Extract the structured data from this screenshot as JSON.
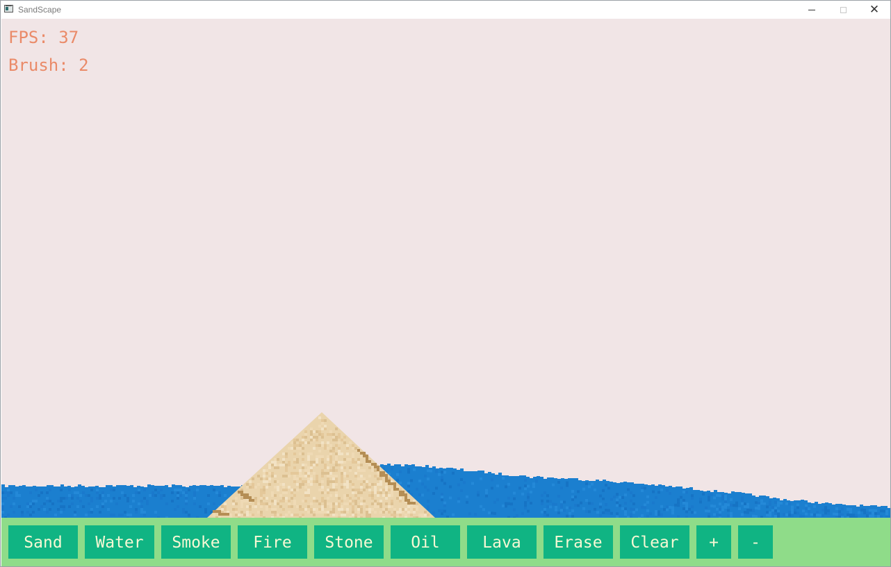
{
  "window": {
    "title": "SandScape"
  },
  "hud": {
    "fps_text": "FPS: 37",
    "brush_text": "Brush: 2"
  },
  "toolbar": {
    "buttons": [
      "Sand",
      "Water",
      "Smoke",
      "Fire",
      "Stone",
      "Oil",
      "Lava",
      "Erase",
      "Clear",
      "+",
      "-"
    ]
  },
  "colors": {
    "background": "#f1e5e6",
    "hud_text": "#ea8a68",
    "toolbar_bg": "#8fdc89",
    "button_bg": "#10b483",
    "button_text": "#f6f8d4",
    "water": "#1b7fcf",
    "sand_light": "#ead4ac",
    "sand_dark": "#b58e55"
  }
}
